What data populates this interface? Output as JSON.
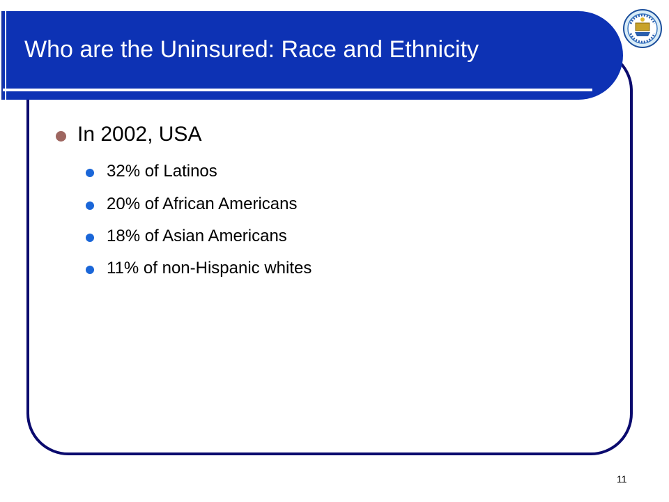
{
  "slide": {
    "title": "Who are the Uninsured: Race and Ethnicity",
    "page_number": "11",
    "logo_icon": "university-seal-icon"
  },
  "bullets": {
    "main": "In 2002, USA",
    "sub": [
      "32% of Latinos",
      "20% of African Americans",
      "18% of Asian Americans",
      "11% of non-Hispanic whites"
    ]
  },
  "colors": {
    "title_bar": "#0d32b4",
    "frame_border": "#0a0a6e",
    "main_bullet": "#9e6660",
    "sub_bullet": "#1a66d8"
  }
}
